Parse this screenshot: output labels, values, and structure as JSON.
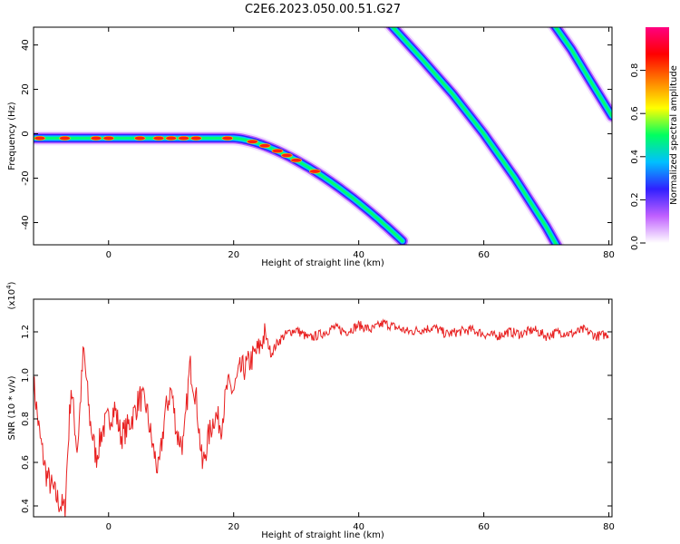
{
  "title": "C2E6.2023.050.00.51.G27",
  "spectrogram": {
    "type": "heatmap",
    "xlabel": "Height of straight line (km)",
    "ylabel": "Frequency (Hz)",
    "xlim": [
      -12,
      80.5
    ],
    "ylim": [
      -50,
      48
    ],
    "xticks": [
      0,
      20,
      40,
      60,
      80
    ],
    "yticks": [
      -40,
      -20,
      0,
      20,
      40
    ],
    "colorbar": {
      "label": "Normalized spectral amplitude",
      "range": [
        0.0,
        1.0
      ],
      "ticks": [
        0.0,
        0.2,
        0.4,
        0.6,
        0.8
      ],
      "tick_labels": [
        "0.0",
        "0.2",
        "0.4",
        "0.6",
        "0.8"
      ],
      "colors": [
        "#ffffff",
        "#c060ff",
        "#3020ff",
        "#00c0ff",
        "#00ff60",
        "#ffff00",
        "#ff8000",
        "#ff0000",
        "#ff0080"
      ]
    }
  },
  "chart_data": {
    "type": "line",
    "xlabel": "Height of straight line (km)",
    "ylabel": "SNR (10 * v/v)",
    "y_multiplier": "(x10",
    "y_multiplier_exp": "4",
    "y_multiplier_close": ")",
    "xlim": [
      -12,
      80.5
    ],
    "ylim": [
      0.35,
      1.35
    ],
    "xticks": [
      0,
      20,
      40,
      60,
      80
    ],
    "yticks": [
      0.4,
      0.6,
      0.8,
      1.0,
      1.2
    ],
    "ytick_labels": [
      "0.4",
      "0.6",
      "0.8",
      "1.0",
      "1.2"
    ],
    "series": [
      {
        "color": "#e82020",
        "x": [
          -12,
          -11,
          -10,
          -9,
          -8,
          -7,
          -6,
          -5,
          -4,
          -3,
          -2,
          -1,
          0,
          1,
          2,
          3,
          4,
          5,
          6,
          7,
          8,
          9,
          10,
          11,
          12,
          13,
          14,
          15,
          16,
          17,
          18,
          19,
          20,
          21,
          22,
          23,
          24,
          25,
          26,
          27,
          28,
          29,
          30,
          32,
          34,
          36,
          38,
          40,
          42,
          44,
          46,
          48,
          50,
          52,
          54,
          56,
          58,
          60,
          62,
          64,
          66,
          68,
          70,
          72,
          74,
          76,
          78,
          80
        ],
        "values": [
          0.97,
          0.72,
          0.55,
          0.48,
          0.42,
          0.38,
          0.95,
          0.65,
          1.12,
          0.8,
          0.62,
          0.75,
          0.8,
          0.85,
          0.72,
          0.76,
          0.82,
          0.9,
          0.86,
          0.68,
          0.55,
          0.82,
          0.94,
          0.72,
          0.68,
          1.05,
          0.9,
          0.58,
          0.72,
          0.82,
          0.77,
          0.95,
          0.93,
          1.02,
          1.04,
          1.08,
          1.12,
          1.19,
          1.1,
          1.15,
          1.18,
          1.2,
          1.21,
          1.17,
          1.19,
          1.22,
          1.2,
          1.23,
          1.21,
          1.24,
          1.22,
          1.2,
          1.21,
          1.22,
          1.19,
          1.2,
          1.21,
          1.19,
          1.18,
          1.2,
          1.19,
          1.21,
          1.18,
          1.2,
          1.19,
          1.21,
          1.18,
          1.19
        ]
      }
    ]
  }
}
